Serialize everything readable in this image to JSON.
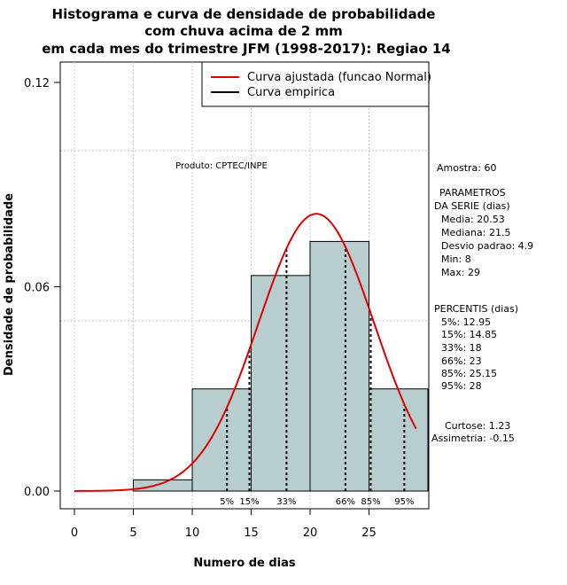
{
  "chart_data": {
    "type": "bar",
    "title_lines": [
      "Histograma e curva de densidade de probabilidade",
      "com chuva acima de 2 mm",
      "em cada mes do trimestre JFM (1998-2017): Regiao 14"
    ],
    "xlabel": "Numero de dias",
    "ylabel": "Densidade de probabilidade",
    "xlim": [
      -2,
      30
    ],
    "ylim": [
      0,
      0.12
    ],
    "x_ticks": [
      0,
      5,
      10,
      15,
      20,
      25
    ],
    "y_ticks": [
      0.0,
      0.06,
      0.12
    ],
    "y_tick_labels": [
      "0.00",
      "0.06",
      "0.12"
    ],
    "histogram": {
      "bins": [
        {
          "start": 5,
          "end": 10,
          "density": 0.0033
        },
        {
          "start": 10,
          "end": 15,
          "density": 0.03
        },
        {
          "start": 15,
          "end": 20,
          "density": 0.0633
        },
        {
          "start": 20,
          "end": 25,
          "density": 0.0733
        },
        {
          "start": 25,
          "end": 30,
          "density": 0.03
        }
      ],
      "fill": "#b8cece"
    },
    "normal_curve": {
      "mean": 20.53,
      "sd": 4.9,
      "x_from": 0,
      "x_to": 29,
      "color": "#e00000"
    },
    "percentile_lines": [
      {
        "label": "5%",
        "x": 12.95
      },
      {
        "label": "15%",
        "x": 14.85
      },
      {
        "label": "33%",
        "x": 18
      },
      {
        "label": "66%",
        "x": 23
      },
      {
        "label": "85%",
        "x": 25.15
      },
      {
        "label": "95%",
        "x": 28
      }
    ],
    "legend": {
      "position": "top-right",
      "entries": [
        {
          "label": "Curva ajustada (funcao Normal)",
          "color": "#e00000"
        },
        {
          "label": "Curva empirica",
          "color": "#000000"
        }
      ]
    },
    "credit": "Produto: CPTEC/INPE",
    "stats_panel": {
      "sample": "Amostra: 60",
      "params_header": [
        "PARAMETROS",
        "DA SERIE (dias)"
      ],
      "params": [
        "Media: 20.53",
        "Mediana: 21.5",
        "Desvio padrao: 4.9",
        "Min: 8",
        "Max: 29"
      ],
      "percentis_header": "PERCENTIS (dias)",
      "percentis": [
        "5%: 12.95",
        "15%: 14.85",
        "33%: 18",
        "66%: 23",
        "85%: 25.15",
        "95%: 28"
      ],
      "shape": [
        "Curtose: 1.23",
        "Assimetria: -0.15"
      ]
    }
  }
}
